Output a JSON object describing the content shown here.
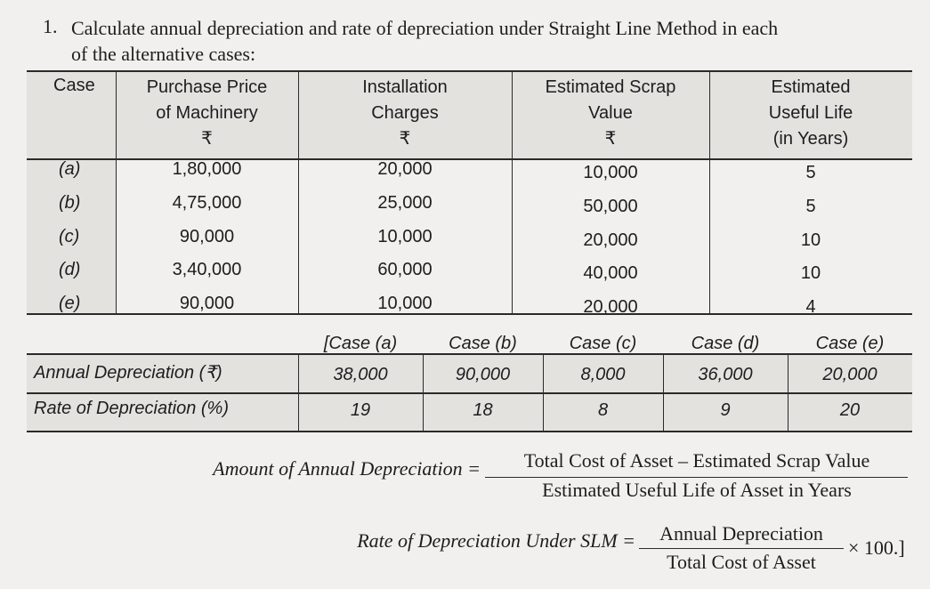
{
  "question": {
    "number": "1.",
    "lines": [
      "Calculate annual depreciation and rate of depreciation under Straight Line Method in each",
      "of the alternative cases:"
    ]
  },
  "table1": {
    "headers": [
      [
        "Case"
      ],
      [
        "Purchase Price",
        "of Machinery",
        "₹"
      ],
      [
        "Installation",
        "Charges",
        "₹"
      ],
      [
        "Estimated Scrap",
        "Value",
        "₹"
      ],
      [
        "Estimated",
        "Useful Life",
        "(in Years)"
      ]
    ],
    "rows": [
      [
        "(a)",
        "1,80,000",
        "20,000",
        "10,000",
        "5"
      ],
      [
        "(b)",
        "4,75,000",
        "25,000",
        "50,000",
        "5"
      ],
      [
        "(c)",
        "90,000",
        "10,000",
        "20,000",
        "10"
      ],
      [
        "(d)",
        "3,40,000",
        "60,000",
        "40,000",
        "10"
      ],
      [
        "(e)",
        "90,000",
        "10,000",
        "20,000",
        "4"
      ]
    ]
  },
  "table2": {
    "headers": [
      "[Case (a)",
      "Case (b)",
      "Case (c)",
      "Case (d)",
      "Case (e)"
    ],
    "rows": [
      [
        "Annual Depreciation (₹)",
        "38,000",
        "90,000",
        "8,000",
        "36,000",
        "20,000"
      ],
      [
        "Rate of Depreciation (%)",
        "19",
        "18",
        "8",
        "9",
        "20"
      ]
    ]
  },
  "formula1": {
    "lhs": "Amount of Annual Depreciation =",
    "numerator": "Total Cost of Asset – Estimated Scrap Value",
    "denominator": "Estimated Useful Life of Asset in Years"
  },
  "formula2": {
    "lhs": "Rate of Depreciation Under SLM =",
    "numerator": "Annual Depreciation",
    "denominator": "Total Cost of Asset",
    "tail": "× 100.]"
  }
}
